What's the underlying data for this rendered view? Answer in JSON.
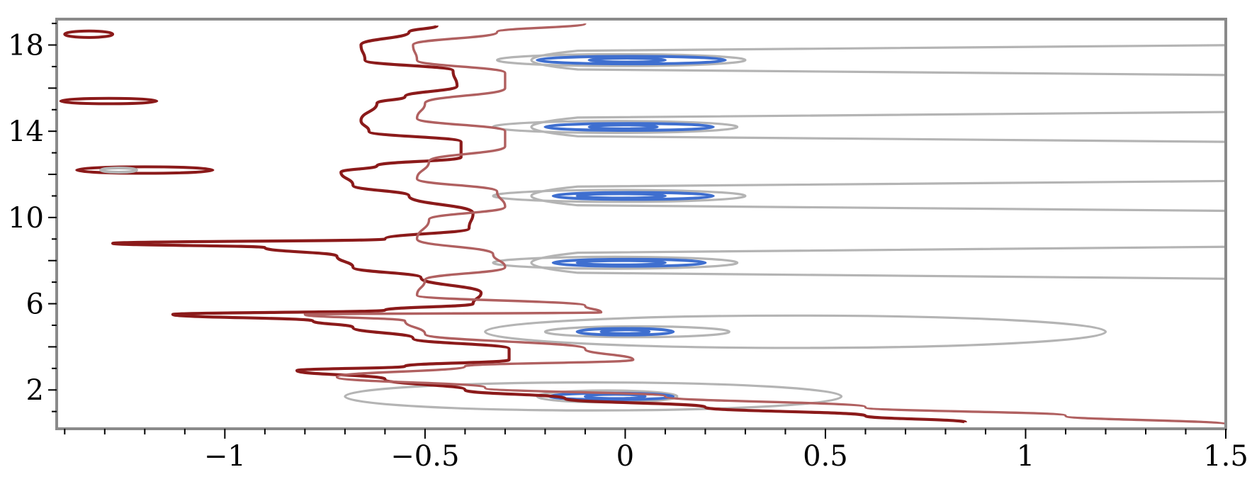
{
  "chart_data": {
    "type": "contour",
    "title": "",
    "xlabel": "",
    "ylabel": "",
    "xlim": [
      -1.42,
      1.5
    ],
    "ylim": [
      0.2,
      19.2
    ],
    "grid": false,
    "x_ticks": [
      {
        "value": -1,
        "label": "−1"
      },
      {
        "value": -0.5,
        "label": "−0.5"
      },
      {
        "value": 0,
        "label": "0"
      },
      {
        "value": 0.5,
        "label": "0.5"
      },
      {
        "value": 1,
        "label": "1"
      },
      {
        "value": 1.5,
        "label": "1.5"
      }
    ],
    "y_ticks": [
      {
        "value": 2,
        "label": "2"
      },
      {
        "value": 6,
        "label": "6"
      },
      {
        "value": 10,
        "label": "10"
      },
      {
        "value": 14,
        "label": "14"
      },
      {
        "value": 18,
        "label": "18"
      }
    ],
    "colors": {
      "dark_red": "#8b1a1a",
      "light_red": "#b06060",
      "gray": "#b4b4b4",
      "blue": "#3f6fcf",
      "frame": "#8a8a8a"
    },
    "series": [
      {
        "level": "dark-red-wavy",
        "color": "#8b1a1a",
        "points": [
          [
            -0.47,
            18.9
          ],
          [
            -0.54,
            18.6
          ],
          [
            -0.66,
            18.0
          ],
          [
            -0.65,
            17.3
          ],
          [
            -0.43,
            16.8
          ],
          [
            -0.42,
            16.1
          ],
          [
            -0.55,
            15.6
          ],
          [
            -0.62,
            15.3
          ],
          [
            -0.66,
            14.5
          ],
          [
            -0.64,
            14.0
          ],
          [
            -0.41,
            13.5
          ],
          [
            -0.41,
            12.8
          ],
          [
            -0.62,
            12.4
          ],
          [
            -0.71,
            12.1
          ],
          [
            -0.68,
            11.5
          ],
          [
            -0.54,
            11.0
          ],
          [
            -0.38,
            10.2
          ],
          [
            -0.39,
            9.5
          ],
          [
            -0.6,
            9.0
          ],
          [
            -1.28,
            8.8
          ],
          [
            -0.9,
            8.6
          ],
          [
            -0.72,
            8.2
          ],
          [
            -0.68,
            7.7
          ],
          [
            -0.51,
            7.2
          ],
          [
            -0.36,
            6.5
          ],
          [
            -0.38,
            6.0
          ],
          [
            -0.6,
            5.7
          ],
          [
            -1.13,
            5.5
          ],
          [
            -0.78,
            5.2
          ],
          [
            -0.68,
            4.9
          ],
          [
            -0.53,
            4.4
          ],
          [
            -0.29,
            3.9
          ],
          [
            -0.29,
            3.4
          ],
          [
            -0.55,
            3.1
          ],
          [
            -0.82,
            2.9
          ],
          [
            -0.6,
            2.5
          ],
          [
            -0.4,
            2.0
          ],
          [
            -0.15,
            1.6
          ],
          [
            0.2,
            1.2
          ],
          [
            0.6,
            0.8
          ],
          [
            0.85,
            0.5
          ]
        ]
      },
      {
        "level": "light-red-wavy",
        "color": "#b06060",
        "points": [
          [
            -0.1,
            19.0
          ],
          [
            -0.32,
            18.6
          ],
          [
            -0.53,
            18.0
          ],
          [
            -0.52,
            17.3
          ],
          [
            -0.3,
            16.7
          ],
          [
            -0.3,
            16.0
          ],
          [
            -0.5,
            15.3
          ],
          [
            -0.52,
            14.6
          ],
          [
            -0.3,
            14.0
          ],
          [
            -0.3,
            13.3
          ],
          [
            -0.49,
            12.6
          ],
          [
            -0.52,
            11.8
          ],
          [
            -0.32,
            11.2
          ],
          [
            -0.3,
            10.5
          ],
          [
            -0.49,
            9.9
          ],
          [
            -0.52,
            9.0
          ],
          [
            -0.33,
            8.3
          ],
          [
            -0.3,
            7.7
          ],
          [
            -0.5,
            7.1
          ],
          [
            -0.52,
            6.4
          ],
          [
            -0.1,
            5.9
          ],
          [
            -0.06,
            5.6
          ],
          [
            -0.8,
            5.5
          ],
          [
            -0.55,
            5.2
          ],
          [
            -0.5,
            4.6
          ],
          [
            -0.1,
            3.9
          ],
          [
            0.02,
            3.4
          ],
          [
            -0.4,
            3.1
          ],
          [
            -0.72,
            2.6
          ],
          [
            -0.35,
            2.1
          ],
          [
            0.1,
            1.7
          ],
          [
            0.6,
            1.2
          ],
          [
            1.1,
            0.8
          ],
          [
            1.5,
            0.4
          ]
        ]
      }
    ],
    "islands": [
      {
        "color": "#8b1a1a",
        "x_range": [
          -1.4,
          -1.28
        ],
        "y": 18.5,
        "height": 0.3
      },
      {
        "color": "#8b1a1a",
        "x_range": [
          -1.41,
          -1.17
        ],
        "y": 15.4,
        "height": 0.25
      },
      {
        "color": "#8b1a1a",
        "x_range": [
          -1.37,
          -1.03
        ],
        "y": 12.2,
        "height": 0.3
      },
      {
        "color": "#b4b4b4",
        "x_range": [
          -1.31,
          -1.22
        ],
        "y": 12.2,
        "height": 0.12
      }
    ],
    "ellipse_groups": [
      {
        "y": 17.3,
        "rings": [
          {
            "color": "#b4b4b4",
            "x_range": [
              -0.35,
              1.5
            ],
            "height": 1.4,
            "open_right": true
          },
          {
            "color": "#b4b4b4",
            "x_range": [
              -0.32,
              0.3
            ],
            "height": 0.55
          },
          {
            "color": "#3f6fcf",
            "x_range": [
              -0.22,
              0.25
            ],
            "height": 0.35
          },
          {
            "color": "#3f6fcf",
            "x_range": [
              -0.09,
              0.1
            ],
            "height": 0.18
          }
        ]
      },
      {
        "y": 14.2,
        "rings": [
          {
            "color": "#b4b4b4",
            "x_range": [
              -0.35,
              1.5
            ],
            "height": 1.4,
            "open_right": true
          },
          {
            "color": "#b4b4b4",
            "x_range": [
              -0.33,
              0.28
            ],
            "height": 0.55
          },
          {
            "color": "#3f6fcf",
            "x_range": [
              -0.2,
              0.22
            ],
            "height": 0.32
          },
          {
            "color": "#3f6fcf",
            "x_range": [
              -0.09,
              0.08
            ],
            "height": 0.18
          }
        ]
      },
      {
        "y": 11.0,
        "rings": [
          {
            "color": "#b4b4b4",
            "x_range": [
              -0.35,
              1.5
            ],
            "height": 1.4,
            "open_right": true
          },
          {
            "color": "#b4b4b4",
            "x_range": [
              -0.33,
              0.3
            ],
            "height": 0.55
          },
          {
            "color": "#3f6fcf",
            "x_range": [
              -0.18,
              0.22
            ],
            "height": 0.32
          },
          {
            "color": "#3f6fcf",
            "x_range": [
              -0.12,
              0.1
            ],
            "height": 0.2
          }
        ]
      },
      {
        "y": 7.9,
        "rings": [
          {
            "color": "#b4b4b4",
            "x_range": [
              -0.35,
              1.5
            ],
            "height": 1.5,
            "open_right": true
          },
          {
            "color": "#b4b4b4",
            "x_range": [
              -0.33,
              0.28
            ],
            "height": 0.55
          },
          {
            "color": "#3f6fcf",
            "x_range": [
              -0.18,
              0.2
            ],
            "height": 0.32
          },
          {
            "color": "#3f6fcf",
            "x_range": [
              -0.12,
              0.1
            ],
            "height": 0.2
          }
        ]
      },
      {
        "y": 4.7,
        "rings": [
          {
            "color": "#b4b4b4",
            "x_range": [
              -0.35,
              1.2
            ],
            "height": 1.5
          },
          {
            "color": "#b4b4b4",
            "x_range": [
              -0.2,
              0.26
            ],
            "height": 0.5
          },
          {
            "color": "#3f6fcf",
            "x_range": [
              -0.12,
              0.12
            ],
            "height": 0.3
          },
          {
            "color": "#3f6fcf",
            "x_range": [
              -0.06,
              0.06
            ],
            "height": 0.18
          }
        ]
      },
      {
        "y": 1.7,
        "rings": [
          {
            "color": "#b4b4b4",
            "x_range": [
              -0.7,
              0.54
            ],
            "height": 1.3
          },
          {
            "color": "#b4b4b4",
            "x_range": [
              -0.22,
              0.13
            ],
            "height": 0.55
          },
          {
            "color": "#3f6fcf",
            "x_range": [
              -0.19,
              0.12
            ],
            "height": 0.3
          },
          {
            "color": "#3f6fcf",
            "x_range": [
              -0.1,
              0.05
            ],
            "height": 0.2
          }
        ]
      }
    ]
  }
}
